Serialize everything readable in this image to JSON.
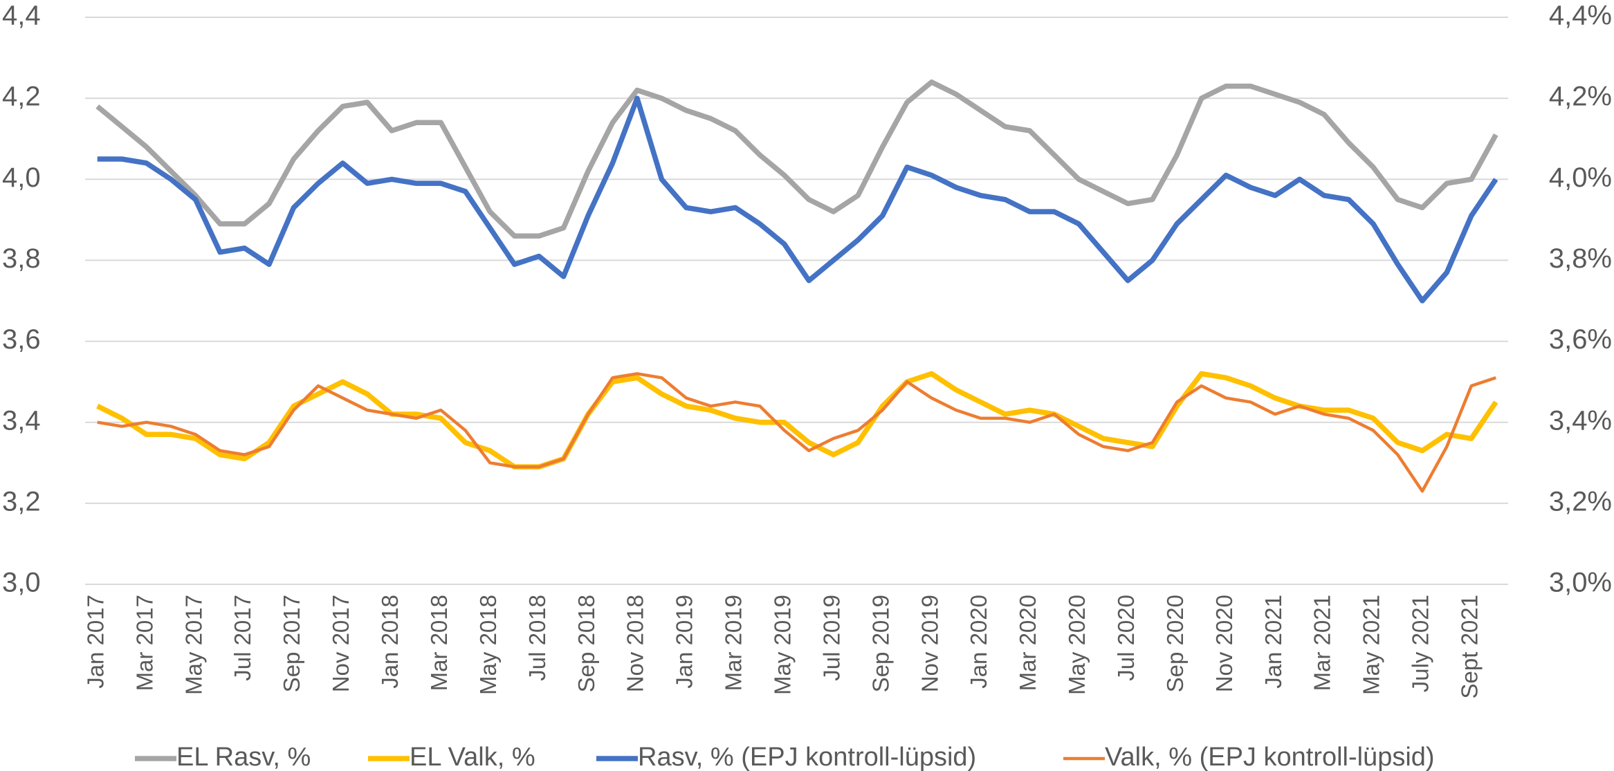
{
  "chart_data": {
    "type": "line",
    "categories": [
      "Jan 2017",
      null,
      "Mar 2017",
      null,
      "May 2017",
      null,
      "Jul 2017",
      null,
      "Sep 2017",
      null,
      "Nov 2017",
      null,
      "Jan 2018",
      null,
      "Mar 2018",
      null,
      "May 2018",
      null,
      "Jul 2018",
      null,
      "Sep 2018",
      null,
      "Nov 2018",
      null,
      "Jan 2019",
      null,
      "Mar 2019",
      null,
      "May 2019",
      null,
      "Jul 2019",
      null,
      "Sep 2019",
      null,
      "Nov 2019",
      null,
      "Jan 2020",
      null,
      "Mar 2020",
      null,
      "May 2020",
      null,
      "Jul 2020",
      null,
      "Sep 2020",
      null,
      "Nov 2020",
      null,
      "Jan 2021",
      null,
      "Mar 2021",
      null,
      "May 2021",
      null,
      "July 2021",
      null,
      "Sept 2021",
      null
    ],
    "series": [
      {
        "name": "EL Rasv, %",
        "color": "#a5a5a5",
        "values": [
          4.18,
          4.13,
          4.08,
          4.02,
          3.96,
          3.89,
          3.89,
          3.94,
          4.05,
          4.12,
          4.18,
          4.19,
          4.12,
          4.14,
          4.14,
          4.03,
          3.92,
          3.86,
          3.86,
          3.88,
          4.02,
          4.14,
          4.22,
          4.2,
          4.17,
          4.15,
          4.12,
          4.06,
          4.01,
          3.95,
          3.92,
          3.96,
          4.08,
          4.19,
          4.24,
          4.21,
          4.17,
          4.13,
          4.12,
          4.06,
          4.0,
          3.97,
          3.94,
          3.95,
          4.06,
          4.2,
          4.23,
          4.23,
          4.21,
          4.19,
          4.16,
          4.09,
          4.03,
          3.95,
          3.93,
          3.99,
          4.0,
          4.11
        ]
      },
      {
        "name": "EL Valk, %",
        "color": "#ffc000",
        "values": [
          3.44,
          3.41,
          3.37,
          3.37,
          3.36,
          3.32,
          3.31,
          3.35,
          3.44,
          3.47,
          3.5,
          3.47,
          3.42,
          3.42,
          3.41,
          3.35,
          3.33,
          3.29,
          3.29,
          3.31,
          3.42,
          3.5,
          3.51,
          3.47,
          3.44,
          3.43,
          3.41,
          3.4,
          3.4,
          3.35,
          3.32,
          3.35,
          3.44,
          3.5,
          3.52,
          3.48,
          3.45,
          3.42,
          3.43,
          3.42,
          3.39,
          3.36,
          3.35,
          3.34,
          3.44,
          3.52,
          3.51,
          3.49,
          3.46,
          3.44,
          3.43,
          3.43,
          3.41,
          3.35,
          3.33,
          3.37,
          3.36,
          3.45
        ]
      },
      {
        "name": "Rasv, % (EPJ kontroll-lüpsid)",
        "color": "#4472c4",
        "values": [
          4.05,
          4.05,
          4.04,
          4.0,
          3.95,
          3.82,
          3.83,
          3.79,
          3.93,
          3.99,
          4.04,
          3.99,
          4.0,
          3.99,
          3.99,
          3.97,
          3.88,
          3.79,
          3.81,
          3.76,
          3.91,
          4.04,
          4.2,
          4.0,
          3.93,
          3.92,
          3.93,
          3.89,
          3.84,
          3.75,
          3.8,
          3.85,
          3.91,
          4.03,
          4.01,
          3.98,
          3.96,
          3.95,
          3.92,
          3.92,
          3.89,
          3.82,
          3.75,
          3.8,
          3.89,
          3.95,
          4.01,
          3.98,
          3.96,
          4.0,
          3.96,
          3.95,
          3.89,
          3.79,
          3.7,
          3.77,
          3.91,
          4.0
        ]
      },
      {
        "name": "Valk, % (EPJ kontroll-lüpsid)",
        "color": "#ed7d31",
        "values": [
          3.4,
          3.39,
          3.4,
          3.39,
          3.37,
          3.33,
          3.32,
          3.34,
          3.43,
          3.49,
          3.46,
          3.43,
          3.42,
          3.41,
          3.43,
          3.38,
          3.3,
          3.29,
          3.29,
          3.31,
          3.42,
          3.51,
          3.52,
          3.51,
          3.46,
          3.44,
          3.45,
          3.44,
          3.38,
          3.33,
          3.36,
          3.38,
          3.43,
          3.5,
          3.46,
          3.43,
          3.41,
          3.41,
          3.4,
          3.42,
          3.37,
          3.34,
          3.33,
          3.35,
          3.45,
          3.49,
          3.46,
          3.45,
          3.42,
          3.44,
          3.42,
          3.41,
          3.38,
          3.32,
          3.23,
          3.34,
          3.49,
          3.51
        ]
      }
    ],
    "ylim": [
      3.0,
      4.4
    ],
    "yticks": [
      {
        "value": 3.0,
        "label": "3,0"
      },
      {
        "value": 3.2,
        "label": "3,2"
      },
      {
        "value": 3.4,
        "label": "3,4"
      },
      {
        "value": 3.6,
        "label": "3,6"
      },
      {
        "value": 3.8,
        "label": "3,8"
      },
      {
        "value": 4.0,
        "label": "4,0"
      },
      {
        "value": 4.2,
        "label": "4,2"
      },
      {
        "value": 4.4,
        "label": "4,4"
      }
    ],
    "y2lim": [
      3.0,
      4.4
    ],
    "y2ticks": [
      {
        "value": 3.0,
        "label": "3,0%"
      },
      {
        "value": 3.2,
        "label": "3,2%"
      },
      {
        "value": 3.4,
        "label": "3,4%"
      },
      {
        "value": 3.6,
        "label": "3,6%"
      },
      {
        "value": 3.8,
        "label": "3,8%"
      },
      {
        "value": 4.0,
        "label": "4,0%"
      },
      {
        "value": 4.2,
        "label": "4,2%"
      },
      {
        "value": 4.4,
        "label": "4,4%"
      }
    ],
    "grid": true,
    "legend": "bottom"
  }
}
